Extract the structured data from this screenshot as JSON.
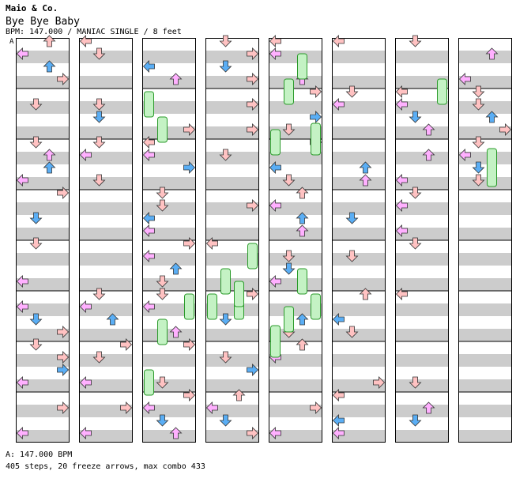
{
  "artist": "Maio & Co.",
  "title": "Bye Bye Baby",
  "meta_line": "BPM: 147.000 / MANIAC SINGLE / 8 feet",
  "bpm_marker": "A",
  "footer": {
    "bpm_line": "A: 147.000 BPM",
    "stats_line": "405 steps, 20 freeze arrows, max combo 433"
  },
  "colors": {
    "stripe": "#cccccc",
    "red_arrow": "#ffc2c2",
    "blue_arrow": "#5aaef5",
    "pink_arrow": "#ffb0ff",
    "freeze": "#c4f2c4"
  },
  "chart_data": {
    "type": "step_chart",
    "columns": 8,
    "measures_per_column": 8,
    "lanes": [
      "left",
      "down",
      "up",
      "right"
    ],
    "bpm": 147.0,
    "difficulty": "MANIAC",
    "mode": "SINGLE",
    "feet": 8,
    "steps": 405,
    "freeze_arrows": 20,
    "max_combo": 433
  }
}
